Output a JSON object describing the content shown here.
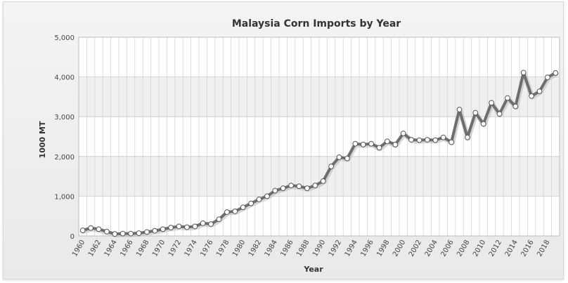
{
  "chart_data": {
    "type": "line",
    "title": "Malaysia Corn Imports by Year",
    "xlabel": "Year",
    "ylabel": "1000 MT",
    "ylim": [
      0,
      5000
    ],
    "yticks": [
      "0",
      "1,000",
      "2,000",
      "3,000",
      "4,000",
      "5,000"
    ],
    "xtick_labels": [
      "1960",
      "1962",
      "1964",
      "1966",
      "1968",
      "1970",
      "1972",
      "1974",
      "1976",
      "1978",
      "1980",
      "1982",
      "1984",
      "1986",
      "1988",
      "1990",
      "1992",
      "1994",
      "1996",
      "1998",
      "2000",
      "2002",
      "2004",
      "2006",
      "2008",
      "2010",
      "2012",
      "2014",
      "2016",
      "2018"
    ],
    "grid": true,
    "x": [
      1960,
      1961,
      1962,
      1963,
      1964,
      1965,
      1966,
      1967,
      1968,
      1969,
      1970,
      1971,
      1972,
      1973,
      1974,
      1975,
      1976,
      1977,
      1978,
      1979,
      1980,
      1981,
      1982,
      1983,
      1984,
      1985,
      1986,
      1987,
      1988,
      1989,
      1990,
      1991,
      1992,
      1993,
      1994,
      1995,
      1996,
      1997,
      1998,
      1999,
      2000,
      2001,
      2002,
      2003,
      2004,
      2005,
      2006,
      2007,
      2008,
      2009,
      2010,
      2011,
      2012,
      2013,
      2014,
      2015,
      2016,
      2017,
      2018,
      2019
    ],
    "values": [
      140,
      200,
      170,
      110,
      50,
      60,
      60,
      70,
      100,
      130,
      170,
      210,
      240,
      220,
      240,
      320,
      300,
      420,
      600,
      620,
      720,
      820,
      920,
      1000,
      1140,
      1200,
      1270,
      1250,
      1200,
      1270,
      1380,
      1750,
      1980,
      1950,
      2320,
      2300,
      2320,
      2220,
      2380,
      2300,
      2580,
      2420,
      2410,
      2420,
      2410,
      2480,
      2360,
      3180,
      2480,
      3100,
      2820,
      3350,
      3070,
      3470,
      3260,
      4110,
      3520,
      3640,
      3990,
      4100
    ],
    "colors": {
      "line": "#6d6d6d",
      "marker_fill": "#ffffff",
      "marker_stroke": "#555555",
      "band": "#f0f0f0",
      "plot_bg": "#ffffff",
      "grid": "#d6d6d6"
    }
  }
}
